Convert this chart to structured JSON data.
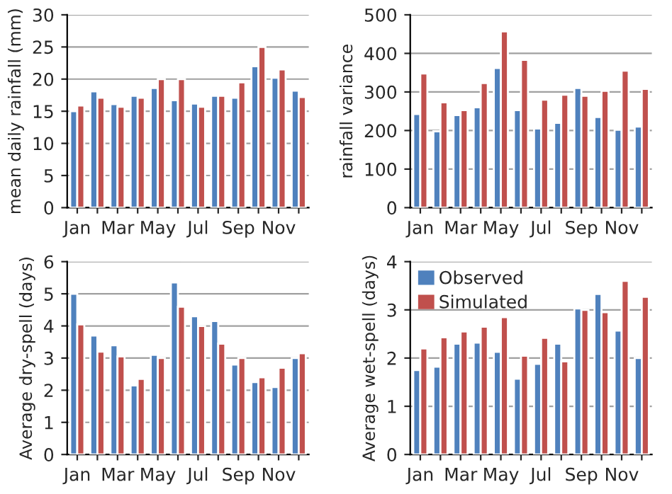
{
  "chart_data": [
    {
      "type": "bar",
      "ylabel": "mean daily rainfall (mm)",
      "categories": [
        "Jan",
        null,
        "Mar",
        null,
        "May",
        null,
        "Jul",
        null,
        "Sep",
        null,
        "Nov",
        null
      ],
      "ylim": [
        0,
        30
      ],
      "yticks": [
        0,
        5,
        10,
        15,
        20,
        25,
        30
      ],
      "grid": "y",
      "legend": false,
      "series": [
        {
          "color": "#4f81bd",
          "values": [
            15,
            18.1,
            16.1,
            17.4,
            18.6,
            16.7,
            16.2,
            17.4,
            17.1,
            22,
            20.2,
            18.2
          ]
        },
        {
          "color": "#c0504d",
          "values": [
            15.9,
            17.1,
            15.7,
            17.1,
            20,
            20,
            15.7,
            17.4,
            19.5,
            25,
            21.5,
            17.2
          ]
        }
      ]
    },
    {
      "type": "bar",
      "ylabel": "rainfall variance",
      "categories": [
        "Jan",
        null,
        "Mar",
        null,
        "May",
        null,
        "Jul",
        null,
        "Sep",
        null,
        "Nov",
        null
      ],
      "ylim": [
        0,
        500
      ],
      "yticks": [
        0,
        100,
        200,
        300,
        400,
        500
      ],
      "grid": "y",
      "legend": false,
      "series": [
        {
          "color": "#4f81bd",
          "values": [
            243,
            198,
            240,
            260,
            362,
            253,
            205,
            220,
            310,
            235,
            202,
            210
          ]
        },
        {
          "color": "#c0504d",
          "values": [
            348,
            273,
            253,
            323,
            457,
            383,
            280,
            293,
            290,
            303,
            355,
            308
          ]
        }
      ]
    },
    {
      "type": "bar",
      "ylabel": "Average dry-spell (days)",
      "categories": [
        "Jan",
        null,
        "Mar",
        null,
        "May",
        null,
        "Jul",
        null,
        "Sep",
        null,
        "Nov",
        null
      ],
      "ylim": [
        0,
        6
      ],
      "yticks": [
        0,
        1,
        2,
        3,
        4,
        5,
        6
      ],
      "grid": "y",
      "legend": false,
      "series": [
        {
          "color": "#4f81bd",
          "values": [
            5.0,
            3.7,
            3.4,
            2.15,
            3.1,
            5.35,
            4.3,
            4.15,
            2.8,
            2.25,
            2.1,
            3.0
          ]
        },
        {
          "color": "#c0504d",
          "values": [
            4.05,
            3.2,
            3.05,
            2.35,
            3.0,
            4.6,
            4.0,
            3.45,
            3.0,
            2.4,
            2.7,
            3.15
          ]
        }
      ]
    },
    {
      "type": "bar",
      "ylabel": "Average wet-spell (days)",
      "categories": [
        "Jan",
        null,
        "Mar",
        null,
        "May",
        null,
        "Jul",
        null,
        "Sep",
        null,
        "Nov",
        null
      ],
      "ylim": [
        0,
        4
      ],
      "yticks": [
        0,
        1,
        2,
        3,
        4
      ],
      "grid": "y",
      "legend": "top left",
      "series": [
        {
          "name": "Observed",
          "color": "#4f81bd",
          "values": [
            1.75,
            1.82,
            2.3,
            2.32,
            2.13,
            1.57,
            1.88,
            2.3,
            3.03,
            3.33,
            2.57,
            2.0
          ]
        },
        {
          "name": "Simulated",
          "color": "#c0504d",
          "values": [
            2.2,
            2.43,
            2.55,
            2.65,
            2.85,
            2.05,
            2.42,
            1.93,
            3.0,
            2.95,
            3.6,
            3.27
          ]
        }
      ]
    }
  ]
}
